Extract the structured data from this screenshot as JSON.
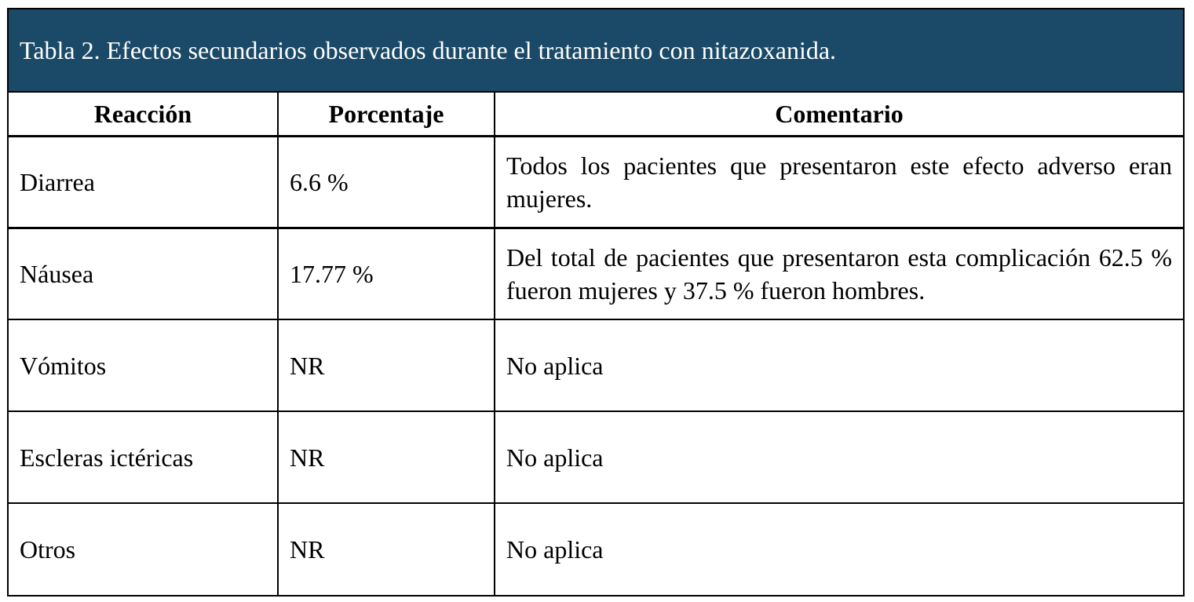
{
  "colors": {
    "title_background": "#1b4a68",
    "title_text": "#ffffff",
    "border": "#000000"
  },
  "table": {
    "title": "Tabla 2. Efectos secundarios observados durante el tratamiento con nitazoxanida.",
    "headers": [
      "Reacción",
      "Porcentaje",
      "Comentario"
    ],
    "rows": [
      {
        "reaction": "Diarrea",
        "percentage": "6.6 %",
        "comment": "Todos los pacientes que presentaron este efecto adverso eran mujeres."
      },
      {
        "reaction": "Náusea",
        "percentage": "17.77 %",
        "comment": "Del total de pacientes que presentaron esta complicación 62.5 % fueron mujeres y 37.5 % fueron hombres."
      },
      {
        "reaction": "Vómitos",
        "percentage": "NR",
        "comment": "No aplica"
      },
      {
        "reaction": "Escleras ictéricas",
        "percentage": "NR",
        "comment": "No aplica"
      },
      {
        "reaction": "Otros",
        "percentage": "NR",
        "comment": "No aplica"
      }
    ]
  }
}
